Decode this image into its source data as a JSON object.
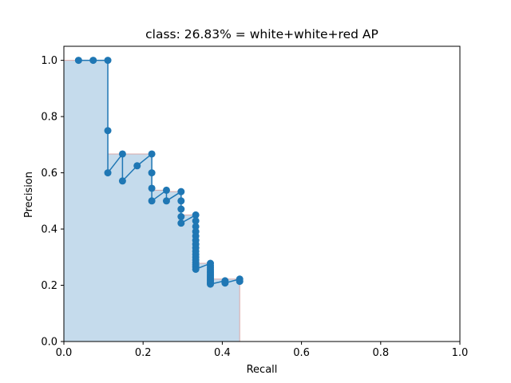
{
  "chart_data": {
    "type": "line",
    "title": "class: 26.83% = white+white+red AP",
    "xlabel": "Recall",
    "ylabel": "Precision",
    "xlim": [
      0,
      1
    ],
    "ylim": [
      0,
      1.05
    ],
    "xticks": [
      "0.0",
      "0.2",
      "0.4",
      "0.6",
      "0.8",
      "1.0"
    ],
    "yticks": [
      "0.0",
      "0.2",
      "0.4",
      "0.6",
      "0.8",
      "1.0"
    ],
    "grid": false,
    "colors": {
      "line": "#1f77b4",
      "fill": "#c5dbec",
      "fill_edge": "#d9a9a9"
    },
    "series": [
      {
        "x": [
          0.037,
          0.074,
          0.111,
          0.111,
          0.111,
          0.148,
          0.148,
          0.185,
          0.222,
          0.222,
          0.222,
          0.222,
          0.259,
          0.259,
          0.296,
          0.296,
          0.296,
          0.296,
          0.296,
          0.333,
          0.333,
          0.333,
          0.333,
          0.333,
          0.333,
          0.333,
          0.333,
          0.333,
          0.333,
          0.333,
          0.333,
          0.333,
          0.333,
          0.333,
          0.333,
          0.37,
          0.37,
          0.37,
          0.37,
          0.37,
          0.37,
          0.37,
          0.37,
          0.37,
          0.37,
          0.37,
          0.37,
          0.37,
          0.37,
          0.407,
          0.407,
          0.444,
          0.444
        ],
        "y": [
          1.0,
          1.0,
          1.0,
          0.75,
          0.6,
          0.667,
          0.571,
          0.625,
          0.667,
          0.6,
          0.545,
          0.5,
          0.538,
          0.5,
          0.533,
          0.5,
          0.471,
          0.444,
          0.421,
          0.45,
          0.429,
          0.409,
          0.391,
          0.375,
          0.36,
          0.346,
          0.333,
          0.321,
          0.31,
          0.3,
          0.29,
          0.281,
          0.273,
          0.265,
          0.257,
          0.278,
          0.27,
          0.263,
          0.256,
          0.25,
          0.244,
          0.238,
          0.233,
          0.227,
          0.222,
          0.217,
          0.213,
          0.208,
          0.204,
          0.216,
          0.208,
          0.222,
          0.214
        ]
      }
    ],
    "envelope": {
      "x": [
        0,
        0.111,
        0.111,
        0.222,
        0.222,
        0.259,
        0.259,
        0.296,
        0.296,
        0.333,
        0.333,
        0.37,
        0.37,
        0.444,
        0.444
      ],
      "y": [
        1.0,
        1.0,
        0.667,
        0.667,
        0.538,
        0.538,
        0.533,
        0.533,
        0.45,
        0.45,
        0.278,
        0.278,
        0.222,
        0.222,
        0
      ]
    }
  }
}
